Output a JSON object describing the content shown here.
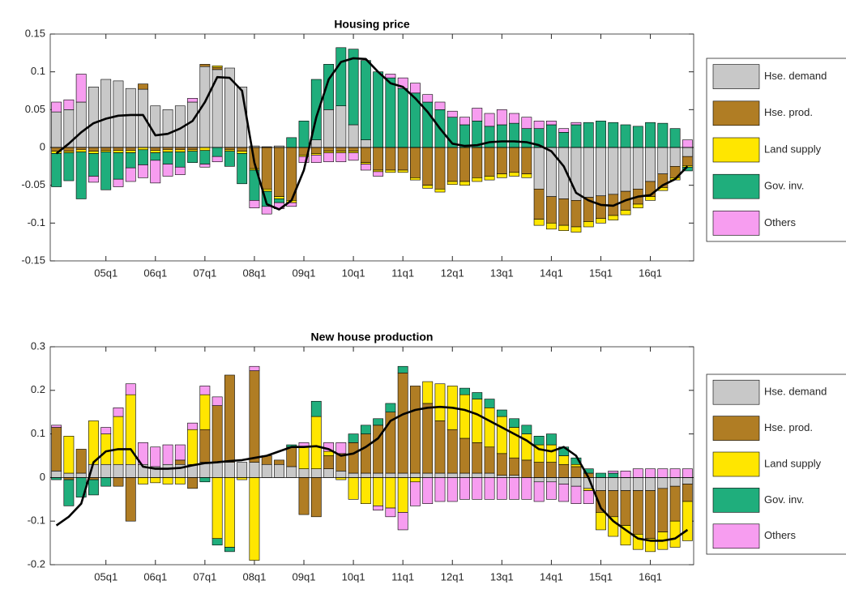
{
  "chart_data": [
    {
      "type": "bar",
      "stacked": true,
      "title": "Housing price",
      "legend": "outside-right",
      "categories": [
        null,
        null,
        null,
        null,
        "05q1",
        null,
        null,
        null,
        "06q1",
        null,
        null,
        null,
        "07q1",
        null,
        null,
        null,
        "08q1",
        null,
        null,
        null,
        "09q1",
        null,
        null,
        null,
        "10q1",
        null,
        null,
        null,
        "11q1",
        null,
        null,
        null,
        "12q1",
        null,
        null,
        null,
        "13q1",
        null,
        null,
        null,
        "14q1",
        null,
        null,
        null,
        "15q1",
        null,
        null,
        null,
        "16q1",
        null,
        null,
        null
      ],
      "ylim": [
        -0.15,
        0.15
      ],
      "yticks": [
        -0.15,
        -0.1,
        -0.05,
        0,
        0.05,
        0.1,
        0.15
      ],
      "series": [
        {
          "name": "Hse. demand",
          "color": "#c8c8c8",
          "values": [
            0.047,
            0.05,
            0.06,
            0.08,
            0.09,
            0.088,
            0.078,
            0.077,
            0.055,
            0.05,
            0.055,
            0.06,
            0.107,
            0.103,
            0.105,
            0.08,
            0.002,
            0.001,
            0.002,
            0,
            0,
            0.01,
            0.05,
            0.055,
            0.03,
            0.01,
            0,
            0,
            0,
            0,
            0,
            0,
            0,
            0,
            0,
            0,
            0,
            0,
            0,
            -0.055,
            -0.065,
            -0.068,
            -0.07,
            -0.066,
            -0.064,
            -0.062,
            -0.058,
            -0.055,
            -0.045,
            -0.035,
            -0.025,
            -0.012
          ]
        },
        {
          "name": "Hse. prod.",
          "color": "#b07d24",
          "values": [
            -0.005,
            -0.005,
            -0.003,
            -0.005,
            -0.004,
            -0.004,
            -0.004,
            0.007,
            -0.004,
            -0.003,
            -0.003,
            -0.003,
            0.003,
            0.003,
            -0.003,
            -0.005,
            -0.028,
            -0.055,
            -0.065,
            -0.07,
            -0.01,
            -0.008,
            -0.005,
            -0.005,
            -0.005,
            -0.02,
            -0.03,
            -0.03,
            -0.03,
            -0.04,
            -0.05,
            -0.055,
            -0.045,
            -0.045,
            -0.04,
            -0.038,
            -0.035,
            -0.033,
            -0.035,
            -0.04,
            -0.035,
            -0.035,
            -0.035,
            -0.032,
            -0.03,
            -0.028,
            -0.025,
            -0.02,
            -0.02,
            -0.018,
            -0.015,
            -0.012
          ]
        },
        {
          "name": "Land supply",
          "color": "#ffe600",
          "values": [
            -0.003,
            -0.002,
            -0.003,
            -0.003,
            -0.002,
            -0.003,
            -0.003,
            -0.003,
            -0.003,
            -0.003,
            -0.003,
            -0.002,
            -0.004,
            0.002,
            -0.002,
            -0.003,
            -0.002,
            -0.003,
            -0.003,
            -0.003,
            -0.002,
            -0.002,
            -0.002,
            -0.002,
            -0.002,
            -0.002,
            -0.002,
            -0.003,
            -0.003,
            -0.003,
            -0.004,
            -0.004,
            -0.004,
            -0.005,
            -0.005,
            -0.005,
            -0.005,
            -0.005,
            -0.005,
            -0.008,
            -0.008,
            -0.007,
            -0.007,
            -0.007,
            -0.006,
            -0.006,
            -0.006,
            -0.005,
            -0.005,
            -0.004,
            -0.003,
            -0.002
          ]
        },
        {
          "name": "Gov. inv.",
          "color": "#1fae7c",
          "values": [
            -0.044,
            -0.037,
            -0.062,
            -0.03,
            -0.05,
            -0.035,
            -0.02,
            -0.02,
            -0.01,
            -0.016,
            -0.02,
            -0.015,
            -0.018,
            -0.012,
            -0.02,
            -0.04,
            -0.04,
            -0.02,
            -0.005,
            0.013,
            0.035,
            0.08,
            0.06,
            0.077,
            0.1,
            0.105,
            0.1,
            0.092,
            0.078,
            0.072,
            0.06,
            0.05,
            0.04,
            0.03,
            0.035,
            0.028,
            0.03,
            0.032,
            0.025,
            0.025,
            0.03,
            0.02,
            0.03,
            0.033,
            0.035,
            0.033,
            0.03,
            0.028,
            0.033,
            0.032,
            0.025,
            -0.005
          ]
        },
        {
          "name": "Others",
          "color": "#f79df0",
          "values": [
            0.013,
            0.013,
            0.037,
            -0.008,
            0,
            -0.01,
            -0.018,
            -0.017,
            -0.03,
            -0.016,
            -0.01,
            0.005,
            -0.004,
            -0.007,
            0,
            0,
            -0.01,
            -0.01,
            -0.008,
            -0.005,
            -0.008,
            -0.01,
            -0.012,
            -0.012,
            -0.01,
            -0.008,
            -0.006,
            0.005,
            0.014,
            0.013,
            0.01,
            0.01,
            0.008,
            0.01,
            0.017,
            0.017,
            0.02,
            0.013,
            0.015,
            0.01,
            0.005,
            0.005,
            0.003,
            0,
            0,
            0,
            0,
            0,
            0,
            0,
            0,
            0.01
          ]
        },
        {
          "type": "line",
          "color": "#000000",
          "values": [
            -0.008,
            0.005,
            0.02,
            0.032,
            0.038,
            0.042,
            0.043,
            0.043,
            0.016,
            0.018,
            0.025,
            0.035,
            0.06,
            0.093,
            0.092,
            0.075,
            -0.02,
            -0.075,
            -0.082,
            -0.07,
            -0.03,
            0.04,
            0.09,
            0.113,
            0.118,
            0.117,
            0.1,
            0.085,
            0.08,
            0.065,
            0.047,
            0.025,
            0.005,
            0.002,
            0.003,
            0.007,
            0.008,
            0.008,
            0.007,
            0.003,
            -0.005,
            -0.025,
            -0.06,
            -0.07,
            -0.076,
            -0.077,
            -0.07,
            -0.065,
            -0.063,
            -0.05,
            -0.042,
            -0.025
          ]
        }
      ]
    },
    {
      "type": "bar",
      "stacked": true,
      "title": "New house production",
      "legend": "outside-right",
      "categories": [
        null,
        null,
        null,
        null,
        "05q1",
        null,
        null,
        null,
        "06q1",
        null,
        null,
        null,
        "07q1",
        null,
        null,
        null,
        "08q1",
        null,
        null,
        null,
        "09q1",
        null,
        null,
        null,
        "10q1",
        null,
        null,
        null,
        "11q1",
        null,
        null,
        null,
        "12q1",
        null,
        null,
        null,
        "13q1",
        null,
        null,
        null,
        "14q1",
        null,
        null,
        null,
        "15q1",
        null,
        null,
        null,
        "16q1",
        null,
        null,
        null
      ],
      "ylim": [
        -0.2,
        0.3
      ],
      "yticks": [
        -0.2,
        -0.1,
        0,
        0.1,
        0.2,
        0.3
      ],
      "series": [
        {
          "name": "Hse. demand",
          "color": "#c8c8c8",
          "values": [
            0.015,
            0.01,
            0.01,
            0.03,
            0.03,
            0.03,
            0.03,
            0.03,
            0.025,
            0.03,
            0.03,
            0.03,
            0.035,
            0.035,
            0.035,
            0.035,
            0.035,
            0.03,
            0.03,
            0.025,
            0.02,
            0.02,
            0.02,
            0.015,
            0.01,
            0.01,
            0.01,
            0.01,
            0.01,
            0.01,
            0.01,
            0.01,
            0.01,
            0.01,
            0.01,
            0.01,
            0.005,
            0.005,
            0,
            -0.01,
            -0.01,
            -0.015,
            -0.02,
            -0.025,
            -0.03,
            -0.03,
            -0.03,
            -0.03,
            -0.03,
            -0.025,
            -0.02,
            -0.015
          ]
        },
        {
          "name": "Hse. prod.",
          "color": "#b07d24",
          "values": [
            0.1,
            -0.005,
            0.055,
            -0.005,
            0,
            -0.02,
            -0.1,
            0,
            0,
            0,
            0.01,
            -0.025,
            0.075,
            0.13,
            0.2,
            0,
            0.21,
            0.02,
            0.01,
            0.045,
            -0.085,
            -0.09,
            0.03,
            0.04,
            0.07,
            0.09,
            0.11,
            0.14,
            0.23,
            0.2,
            0.16,
            0.12,
            0.1,
            0.08,
            0.07,
            0.06,
            0.05,
            0.04,
            0.04,
            0.035,
            0.035,
            0.03,
            0.025,
            0.01,
            -0.05,
            -0.06,
            -0.08,
            -0.1,
            -0.11,
            -0.1,
            -0.08,
            -0.04
          ]
        },
        {
          "name": "Land supply",
          "color": "#ffe600",
          "values": [
            0,
            0.085,
            0,
            0.1,
            0.07,
            0.11,
            0.16,
            -0.015,
            -0.012,
            -0.015,
            -0.015,
            0.08,
            0.08,
            -0.14,
            -0.16,
            -0.005,
            -0.19,
            0,
            0,
            0,
            0.05,
            0.12,
            0.01,
            -0.005,
            -0.05,
            -0.06,
            -0.065,
            -0.07,
            -0.08,
            -0.01,
            0.05,
            0.085,
            0.1,
            0.1,
            0.1,
            0.09,
            0.085,
            0.07,
            0.06,
            0.04,
            0.04,
            0.02,
            0.005,
            -0.005,
            -0.04,
            -0.045,
            -0.045,
            -0.035,
            -0.03,
            -0.04,
            -0.06,
            -0.09
          ]
        },
        {
          "name": "Gov. inv.",
          "color": "#1fae7c",
          "values": [
            -0.005,
            -0.06,
            -0.045,
            -0.035,
            -0.02,
            0,
            0,
            0,
            0,
            0,
            0,
            0,
            -0.01,
            -0.015,
            -0.01,
            0,
            0,
            0,
            0,
            0.005,
            0,
            0.035,
            0,
            0,
            0.02,
            0.02,
            0.015,
            0.02,
            0.015,
            0,
            0,
            0,
            0,
            0.015,
            0.015,
            0.02,
            0.015,
            0.02,
            0.02,
            0.02,
            0.025,
            0.02,
            0.015,
            0.01,
            0.01,
            0.01,
            0,
            0,
            0,
            0,
            0,
            0
          ]
        },
        {
          "name": "Others",
          "color": "#f79df0",
          "values": [
            0.005,
            0,
            0,
            0,
            0.015,
            0.02,
            0.025,
            0.05,
            0.045,
            0.045,
            0.035,
            0.015,
            0.02,
            0.02,
            0,
            0,
            0.01,
            0,
            0,
            0,
            0.01,
            0,
            0.02,
            0.025,
            0,
            0,
            -0.01,
            -0.02,
            -0.04,
            -0.055,
            -0.06,
            -0.055,
            -0.055,
            -0.05,
            -0.05,
            -0.05,
            -0.05,
            -0.05,
            -0.05,
            -0.045,
            -0.04,
            -0.04,
            -0.04,
            -0.03,
            0,
            0.005,
            0.015,
            0.02,
            0.02,
            0.02,
            0.02,
            0.02
          ]
        },
        {
          "type": "line",
          "color": "#000000",
          "values": [
            -0.11,
            -0.09,
            -0.06,
            0.035,
            0.06,
            0.065,
            0.065,
            0.025,
            0.02,
            0.02,
            0.022,
            0.028,
            0.033,
            0.035,
            0.038,
            0.04,
            0.045,
            0.05,
            0.06,
            0.07,
            0.07,
            0.072,
            0.065,
            0.05,
            0.055,
            0.07,
            0.09,
            0.13,
            0.145,
            0.155,
            0.16,
            0.162,
            0.16,
            0.155,
            0.145,
            0.13,
            0.115,
            0.1,
            0.085,
            0.065,
            0.06,
            0.07,
            0.05,
            0,
            -0.07,
            -0.1,
            -0.12,
            -0.14,
            -0.145,
            -0.145,
            -0.14,
            -0.12
          ]
        }
      ]
    }
  ]
}
